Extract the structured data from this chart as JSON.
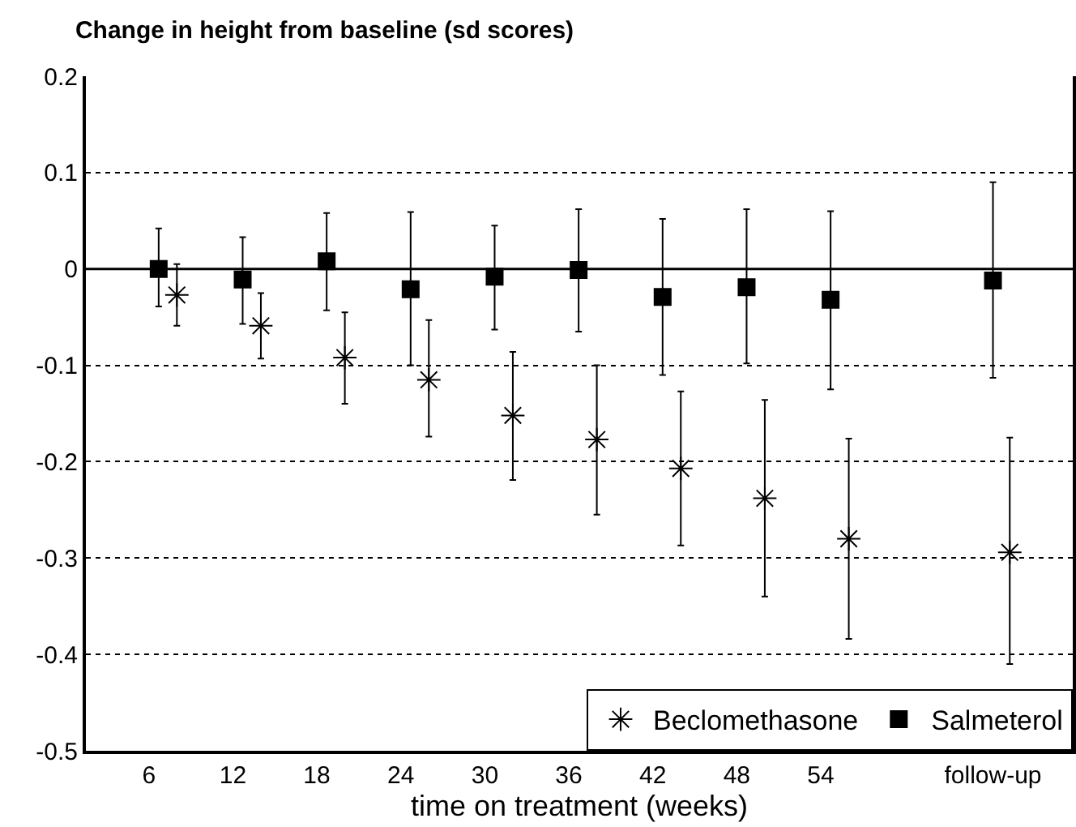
{
  "chart_data": {
    "type": "scatter",
    "title": "Change in height from baseline (sd scores)",
    "xlabel": "time on treatment (weeks)",
    "xlim": [
      1.5,
      72
    ],
    "xticks": [
      6,
      12,
      18,
      24,
      30,
      36,
      42,
      48,
      54,
      {
        "value": 66.3,
        "label": "follow-up"
      }
    ],
    "ylim": [
      -0.5,
      0.2
    ],
    "yticks": [
      0.2,
      0.1,
      0,
      -0.1,
      -0.2,
      -0.3,
      -0.4,
      -0.5
    ],
    "grid": "y",
    "legend": "bottom right",
    "ref_lines": [
      {
        "axis": "y",
        "value": 0,
        "line_style": "solid",
        "color": "#000000"
      }
    ],
    "series": [
      {
        "name": "Beclomethasone",
        "color": "#000000",
        "marker": "cross",
        "x": [
          8,
          14,
          20,
          26,
          32,
          38,
          44,
          50,
          56,
          67.5
        ],
        "values": [
          -0.027,
          -0.059,
          -0.092,
          -0.115,
          -0.152,
          -0.177,
          -0.207,
          -0.238,
          -0.28,
          -0.294
        ],
        "errors": [
          [
            -0.059,
            0.005
          ],
          [
            -0.093,
            -0.025
          ],
          [
            -0.14,
            -0.045
          ],
          [
            -0.174,
            -0.053
          ],
          [
            -0.219,
            -0.086
          ],
          [
            -0.255,
            -0.1
          ],
          [
            -0.287,
            -0.127
          ],
          [
            -0.34,
            -0.136
          ],
          [
            -0.384,
            -0.176
          ],
          [
            -0.41,
            -0.175
          ]
        ]
      },
      {
        "name": "Salmeterol",
        "color": "#000000",
        "marker": "square",
        "x": [
          6.7,
          12.7,
          18.7,
          24.7,
          30.7,
          36.7,
          42.7,
          48.7,
          54.7,
          66.3
        ],
        "values": [
          0,
          -0.011,
          0.008,
          -0.021,
          -0.008,
          -0.001,
          -0.029,
          -0.019,
          -0.032,
          -0.012
        ],
        "errors": [
          [
            -0.039,
            0.042
          ],
          [
            -0.057,
            0.033
          ],
          [
            -0.043,
            0.058
          ],
          [
            -0.1,
            0.059
          ],
          [
            -0.063,
            0.045
          ],
          [
            -0.065,
            0.062
          ],
          [
            -0.11,
            0.052
          ],
          [
            -0.098,
            0.062
          ],
          [
            -0.125,
            0.06
          ],
          [
            -0.113,
            0.09
          ]
        ]
      }
    ]
  }
}
